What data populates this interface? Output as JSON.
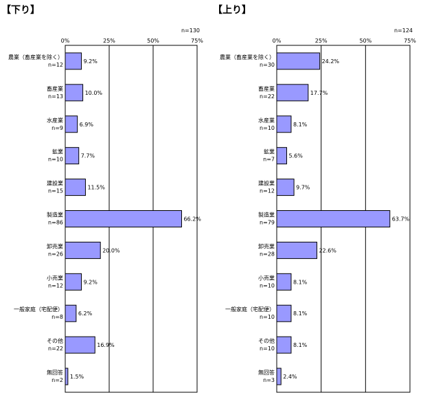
{
  "charts": [
    {
      "title": "【下り】",
      "n_label": "n=130",
      "bar_color": "#9999ff",
      "chart_data": {
        "type": "bar",
        "orientation": "horizontal",
        "xlim": [
          0,
          75
        ],
        "ticks": [
          "0%",
          "25%",
          "50%",
          "75%"
        ],
        "categories": [
          {
            "name": "農業（畜産業を除く）",
            "n": "n=12",
            "value": 9.2,
            "label": "9.2%"
          },
          {
            "name": "畜産業",
            "n": "n=13",
            "value": 10.0,
            "label": "10.0%"
          },
          {
            "name": "水産業",
            "n": "n=9",
            "value": 6.9,
            "label": "6.9%"
          },
          {
            "name": "鉱業",
            "n": "n=10",
            "value": 7.7,
            "label": "7.7%"
          },
          {
            "name": "建設業",
            "n": "n=15",
            "value": 11.5,
            "label": "11.5%"
          },
          {
            "name": "製造業",
            "n": "n=86",
            "value": 66.2,
            "label": "66.2%"
          },
          {
            "name": "卸売業",
            "n": "n=26",
            "value": 20.0,
            "label": "20.0%"
          },
          {
            "name": "小売業",
            "n": "n=12",
            "value": 9.2,
            "label": "9.2%"
          },
          {
            "name": "一般家庭（宅配便）",
            "n": "n=8",
            "value": 6.2,
            "label": "6.2%"
          },
          {
            "name": "その他",
            "n": "n=22",
            "value": 16.9,
            "label": "16.9%"
          },
          {
            "name": "無回答",
            "n": "n=2",
            "value": 1.5,
            "label": "1.5%"
          }
        ]
      }
    },
    {
      "title": "【上り】",
      "n_label": "n=124",
      "bar_color": "#9999ff",
      "chart_data": {
        "type": "bar",
        "orientation": "horizontal",
        "xlim": [
          0,
          75
        ],
        "ticks": [
          "0%",
          "25%",
          "50%",
          "75%"
        ],
        "categories": [
          {
            "name": "農業（畜産業を除く）",
            "n": "n=30",
            "value": 24.2,
            "label": "24.2%"
          },
          {
            "name": "畜産業",
            "n": "n=22",
            "value": 17.7,
            "label": "17.7%"
          },
          {
            "name": "水産業",
            "n": "n=10",
            "value": 8.1,
            "label": "8.1%"
          },
          {
            "name": "鉱業",
            "n": "n=7",
            "value": 5.6,
            "label": "5.6%"
          },
          {
            "name": "建設業",
            "n": "n=12",
            "value": 9.7,
            "label": "9.7%"
          },
          {
            "name": "製造業",
            "n": "n=79",
            "value": 63.7,
            "label": "63.7%"
          },
          {
            "name": "卸売業",
            "n": "n=28",
            "value": 22.6,
            "label": "22.6%"
          },
          {
            "name": "小売業",
            "n": "n=10",
            "value": 8.1,
            "label": "8.1%"
          },
          {
            "name": "一般家庭（宅配便）",
            "n": "n=10",
            "value": 8.1,
            "label": "8.1%"
          },
          {
            "name": "その他",
            "n": "n=10",
            "value": 8.1,
            "label": "8.1%"
          },
          {
            "name": "無回答",
            "n": "n=3",
            "value": 2.4,
            "label": "2.4%"
          }
        ]
      }
    }
  ]
}
